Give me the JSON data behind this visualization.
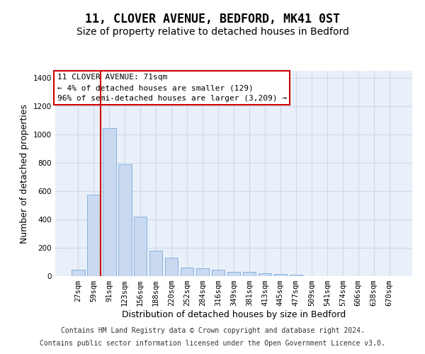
{
  "title": "11, CLOVER AVENUE, BEDFORD, MK41 0ST",
  "subtitle": "Size of property relative to detached houses in Bedford",
  "xlabel": "Distribution of detached houses by size in Bedford",
  "ylabel": "Number of detached properties",
  "categories": [
    "27sqm",
    "59sqm",
    "91sqm",
    "123sqm",
    "156sqm",
    "188sqm",
    "220sqm",
    "252sqm",
    "284sqm",
    "316sqm",
    "349sqm",
    "381sqm",
    "413sqm",
    "445sqm",
    "477sqm",
    "509sqm",
    "541sqm",
    "574sqm",
    "606sqm",
    "638sqm",
    "670sqm"
  ],
  "values": [
    47,
    575,
    1045,
    790,
    420,
    180,
    130,
    60,
    55,
    47,
    30,
    28,
    22,
    17,
    12,
    0,
    0,
    0,
    0,
    0,
    0
  ],
  "bar_color": "#c9d9f0",
  "bar_edge_color": "#7aadda",
  "grid_color": "#d0d8e8",
  "background_color": "#eaf0f9",
  "red_line_x": 1.45,
  "annotation_text": "11 CLOVER AVENUE: 71sqm\n← 4% of detached houses are smaller (129)\n96% of semi-detached houses are larger (3,209) →",
  "annotation_box_color": "#ffffff",
  "annotation_box_edge": "#cc0000",
  "ylim": [
    0,
    1450
  ],
  "yticks": [
    0,
    200,
    400,
    600,
    800,
    1000,
    1200,
    1400
  ],
  "footer1": "Contains HM Land Registry data © Crown copyright and database right 2024.",
  "footer2": "Contains public sector information licensed under the Open Government Licence v3.0.",
  "title_fontsize": 12,
  "subtitle_fontsize": 10,
  "axis_label_fontsize": 9,
  "tick_fontsize": 7.5,
  "footer_fontsize": 7,
  "annotation_fontsize": 8
}
